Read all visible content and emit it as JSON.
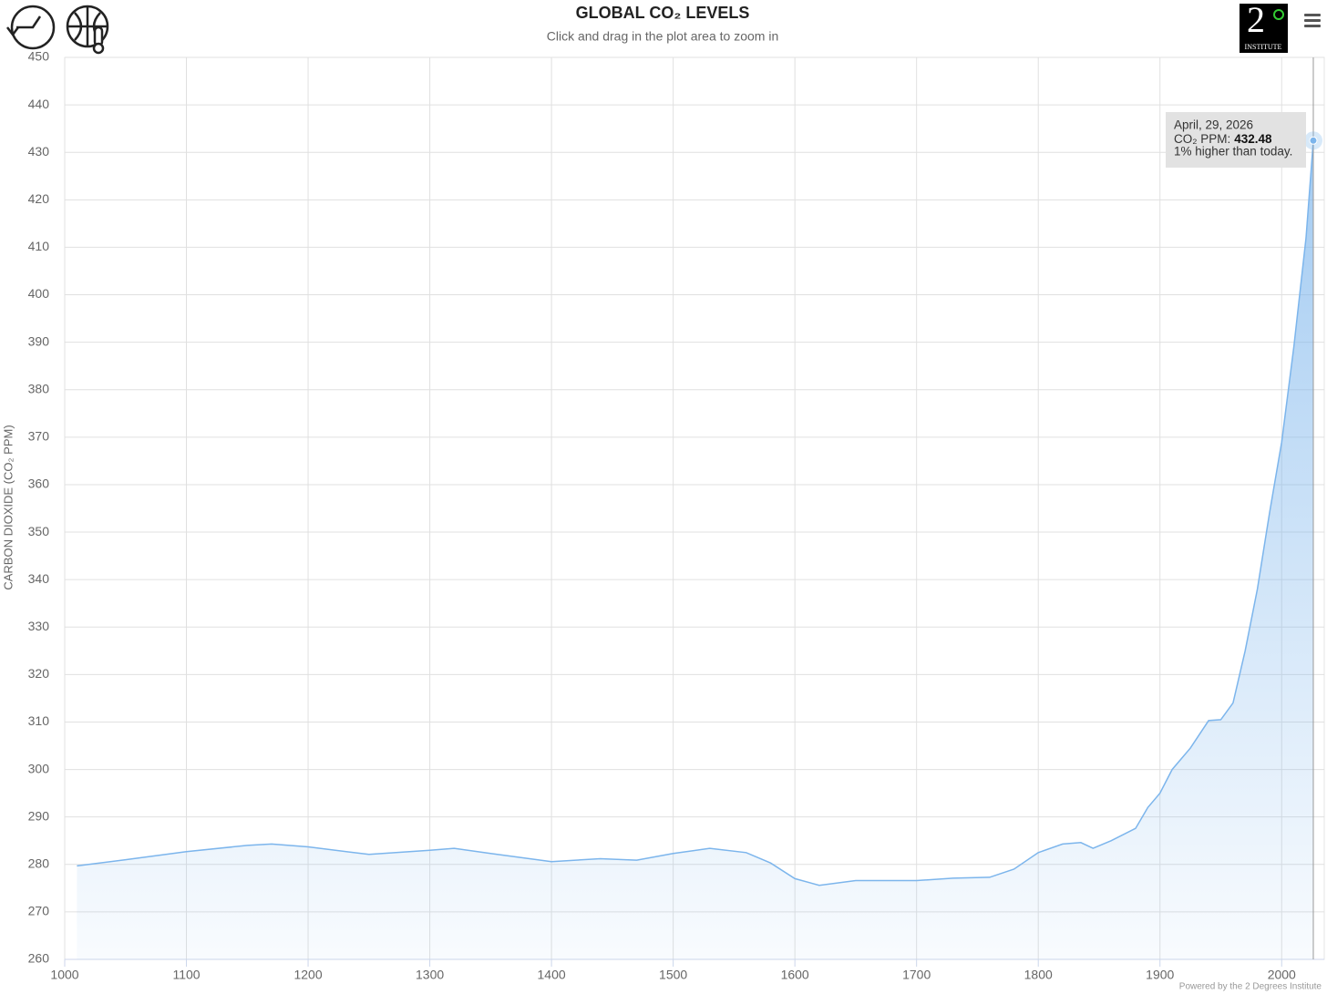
{
  "chart_data": {
    "type": "area",
    "title": "GLOBAL CO₂ LEVELS",
    "subtitle": "Click and drag in the plot area to zoom in",
    "y_label": "CARBON DIOXIDE (CO₂ PPM)",
    "color": "#7cb5ec",
    "x": [
      1010,
      1050,
      1100,
      1150,
      1170,
      1200,
      1250,
      1300,
      1320,
      1350,
      1400,
      1440,
      1470,
      1500,
      1530,
      1560,
      1580,
      1600,
      1620,
      1650,
      1700,
      1730,
      1760,
      1780,
      1800,
      1820,
      1835,
      1845,
      1860,
      1880,
      1890,
      1900,
      1910,
      1925,
      1940,
      1950,
      1960,
      1970,
      1980,
      1990,
      2000,
      2010,
      2020,
      2026
    ],
    "values": [
      279.7,
      281,
      282.7,
      284,
      284.3,
      283.7,
      282.1,
      283,
      283.4,
      282.3,
      280.6,
      281.2,
      280.9,
      282.3,
      283.4,
      282.5,
      280.3,
      277,
      275.6,
      276.6,
      276.6,
      277.1,
      277.3,
      279,
      282.5,
      284.3,
      284.6,
      283.4,
      285,
      287.6,
      292,
      295,
      300,
      304.5,
      310.3,
      310.5,
      314,
      325,
      338,
      354,
      369,
      389,
      412,
      432.48
    ],
    "xlim": [
      1000,
      2035
    ],
    "xticks": [
      1000,
      1100,
      1200,
      1300,
      1400,
      1500,
      1600,
      1700,
      1800,
      1900,
      2000
    ],
    "ylim": [
      260,
      450
    ],
    "yticks": [
      260,
      270,
      280,
      290,
      300,
      310,
      320,
      330,
      340,
      350,
      360,
      370,
      380,
      390,
      400,
      410,
      420,
      430,
      440,
      450
    ],
    "grid": true,
    "tooltip": {
      "date": "April, 29, 2026",
      "label": "CO₂ PPM:",
      "value": 432.48,
      "note": "1% higher than today."
    }
  },
  "logo": {
    "numeral": "2",
    "caption": "INSTITUTE"
  },
  "credit": "Powered by the 2 Degrees Institute"
}
